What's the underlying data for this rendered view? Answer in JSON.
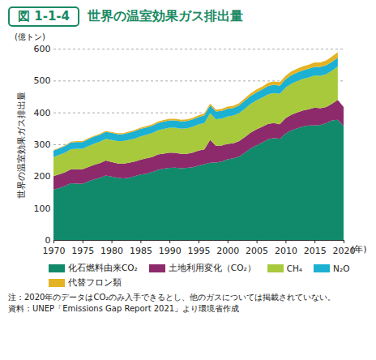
{
  "chart_data": {
    "type": "area",
    "stacked": true,
    "figure_label": "図 1-1-4",
    "title": "世界の温室効果ガス排出量",
    "y_label": "世界の温室効果ガス排出量",
    "y_unit": "(億トン)",
    "x_unit": "(年)",
    "x": [
      1970,
      1971,
      1972,
      1973,
      1974,
      1975,
      1976,
      1977,
      1978,
      1979,
      1980,
      1981,
      1982,
      1983,
      1984,
      1985,
      1986,
      1987,
      1988,
      1989,
      1990,
      1991,
      1992,
      1993,
      1994,
      1995,
      1996,
      1997,
      1998,
      1999,
      2000,
      2001,
      2002,
      2003,
      2004,
      2005,
      2006,
      2007,
      2008,
      2009,
      2010,
      2011,
      2012,
      2013,
      2014,
      2015,
      2016,
      2017,
      2018,
      2019,
      2020
    ],
    "xlim": [
      1970,
      2020
    ],
    "xticks": [
      1970,
      1975,
      1980,
      1985,
      1990,
      1995,
      2000,
      2005,
      2010,
      2015,
      2020
    ],
    "ylim": [
      0,
      600
    ],
    "yticks": [
      0,
      100,
      200,
      300,
      400,
      500,
      600
    ],
    "grid": true,
    "legend": "bottom",
    "series": [
      {
        "name": "化石燃料由来CO₂",
        "color": "#118a6c",
        "values": [
          158,
          163,
          170,
          178,
          177,
          176,
          184,
          190,
          195,
          202,
          199,
          195,
          193,
          195,
          200,
          205,
          208,
          213,
          220,
          224,
          226,
          227,
          225,
          226,
          228,
          233,
          238,
          242,
          243,
          246,
          253,
          256,
          262,
          274,
          287,
          297,
          306,
          316,
          320,
          317,
          334,
          344,
          350,
          356,
          359,
          359,
          361,
          366,
          375,
          377,
          357
        ]
      },
      {
        "name": "土地利用変化（CO₂）",
        "color": "#8c2a6c",
        "values": [
          42,
          43,
          42,
          44,
          45,
          46,
          45,
          46,
          46,
          47,
          46,
          45,
          46,
          47,
          46,
          47,
          48,
          47,
          48,
          47,
          48,
          46,
          45,
          44,
          46,
          47,
          46,
          72,
          52,
          50,
          48,
          47,
          48,
          49,
          50,
          50,
          49,
          48,
          47,
          46,
          48,
          49,
          50,
          50,
          51,
          56,
          52,
          51,
          52,
          62,
          60
        ]
      },
      {
        "name": "CH₄",
        "color": "#a9c93c",
        "values": [
          60,
          61,
          62,
          63,
          64,
          64,
          65,
          66,
          67,
          68,
          69,
          70,
          71,
          72,
          72,
          73,
          74,
          75,
          76,
          77,
          78,
          79,
          79,
          80,
          81,
          82,
          83,
          84,
          84,
          85,
          86,
          87,
          88,
          89,
          90,
          91,
          92,
          93,
          94,
          95,
          96,
          97,
          98,
          99,
          100,
          101,
          102,
          103,
          104,
          105,
          null
        ]
      },
      {
        "name": "N₂O",
        "color": "#1cb0d2",
        "values": [
          20,
          20,
          21,
          21,
          21,
          21,
          22,
          22,
          22,
          22,
          22,
          22,
          22,
          22,
          23,
          23,
          23,
          23,
          23,
          23,
          23,
          23,
          23,
          23,
          23,
          23,
          24,
          24,
          24,
          24,
          24,
          24,
          24,
          25,
          25,
          25,
          25,
          26,
          26,
          26,
          26,
          27,
          27,
          27,
          27,
          27,
          28,
          28,
          28,
          28,
          null
        ]
      },
      {
        "name": "代替フロン類",
        "color": "#e3b323",
        "values": [
          2,
          2,
          2,
          2,
          3,
          3,
          3,
          3,
          3,
          3,
          3,
          3,
          3,
          4,
          4,
          4,
          4,
          4,
          4,
          5,
          5,
          5,
          5,
          5,
          5,
          6,
          6,
          6,
          6,
          6,
          7,
          7,
          7,
          8,
          8,
          9,
          9,
          10,
          10,
          11,
          11,
          12,
          12,
          13,
          13,
          14,
          14,
          15,
          16,
          17,
          null
        ]
      }
    ],
    "notes": [
      "注：2020年のデータはCO₂のみ入手できるとし、他のガスについては掲載されていない。",
      "資料：UNEP「Emissions Gap Report 2021」より環境省作成"
    ]
  }
}
